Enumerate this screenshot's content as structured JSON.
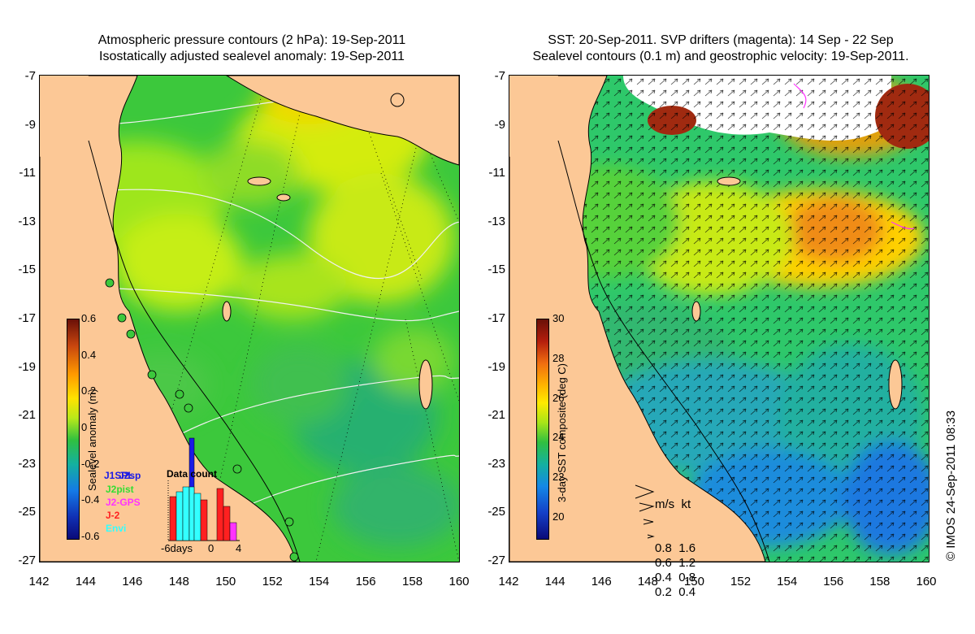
{
  "left_panel": {
    "title_line1": "Atmospheric pressure contours (2 hPa): 19-Sep-2011",
    "title_line2": "Isostatically adjusted sealevel anomaly: 19-Sep-2011",
    "colorbar": {
      "title": "Sealevel anomaly (m)",
      "ticks": [
        "0.6",
        "0.4",
        "0.2",
        "0",
        "-0.2",
        "-0.4",
        "-0.6"
      ],
      "range": [
        -0.6,
        0.6
      ]
    },
    "histogram": {
      "title": "Data count",
      "x_ticks": [
        "-6days",
        "0",
        "4"
      ],
      "legend": [
        {
          "label": "J1SPL",
          "color": "#1a1ae6"
        },
        {
          "label": "J2sp",
          "color": "#1a1ae6"
        },
        {
          "label": "J2pist",
          "color": "#33dd33"
        },
        {
          "label": "J2-GPS",
          "color": "#ff33ff"
        },
        {
          "label": "J-2",
          "color": "#ff2020"
        },
        {
          "label": "Envi",
          "color": "#33ffff"
        }
      ]
    }
  },
  "right_panel": {
    "title_line1": "SST: 20-Sep-2011. SVP drifters (magenta): 14 Sep - 22 Sep",
    "title_line2": "Sealevel contours (0.1 m) and geostrophic velocity: 19-Sep-2011.",
    "colorbar": {
      "title": "3-day SST composite (deg C)",
      "ticks": [
        "30",
        "28",
        "26",
        "24",
        "22",
        "20"
      ],
      "range": [
        19,
        30
      ]
    },
    "velocity_legend": {
      "header_ms": "m/s",
      "header_kt": "kt",
      "rows": [
        {
          "ms": "0.8",
          "kt": "1.6"
        },
        {
          "ms": "0.6",
          "kt": "1.2"
        },
        {
          "ms": "0.4",
          "kt": "0.8"
        },
        {
          "ms": "0.2",
          "kt": "0.4"
        }
      ]
    }
  },
  "axes": {
    "y_ticks": [
      "-7",
      "-9",
      "-11",
      "-13",
      "-15",
      "-17",
      "-19",
      "-21",
      "-23",
      "-25",
      "-27"
    ],
    "x_ticks": [
      "142",
      "144",
      "146",
      "148",
      "150",
      "152",
      "154",
      "156",
      "158",
      "160"
    ],
    "lon_range": [
      142,
      160
    ],
    "lat_range": [
      -27,
      -7
    ]
  },
  "copyright": "© IMOS 24-Sep-2011 08:33",
  "colors": {
    "land": "#fcc896",
    "coast": "#000000"
  }
}
